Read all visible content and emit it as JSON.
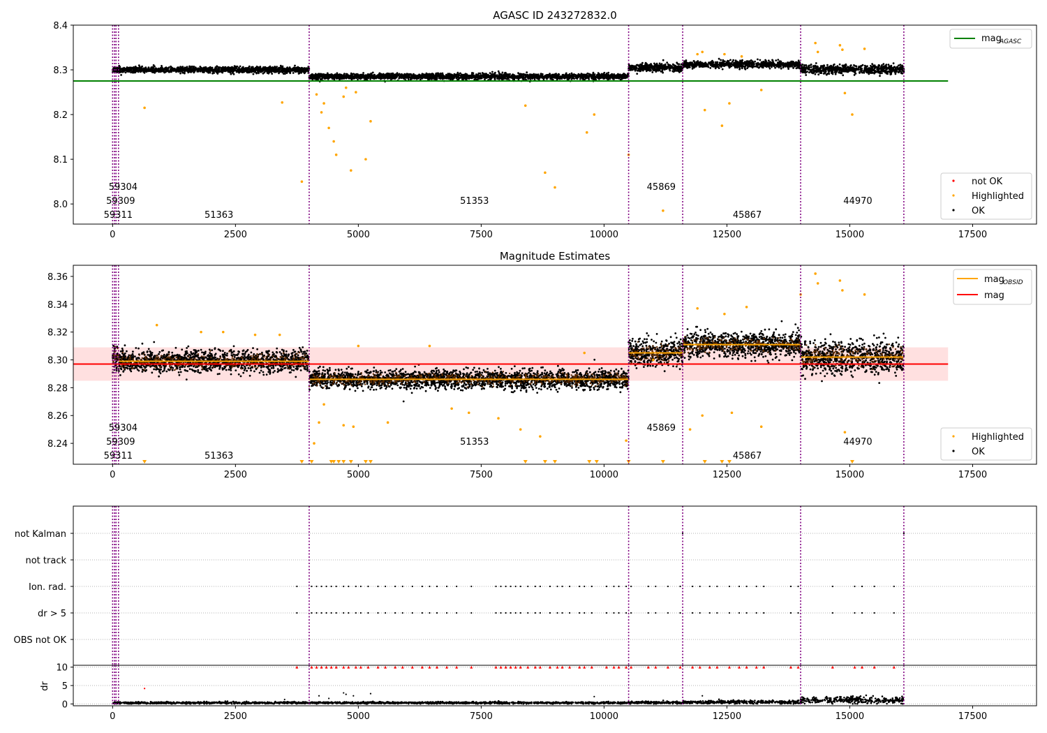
{
  "chart_data": [
    {
      "type": "scatter",
      "title": "AGASC ID 243272832.0",
      "xlim": [
        -800,
        18800
      ],
      "ylim": [
        7.955,
        8.4
      ],
      "xticks": [
        0,
        2500,
        5000,
        7500,
        10000,
        12500,
        15000,
        17500
      ],
      "yticks": [
        8.0,
        8.1,
        8.2,
        8.3,
        8.4
      ],
      "ytick_labels": [
        "8.0",
        "8.1",
        "8.2",
        "8.3",
        "8.4"
      ],
      "grid": false,
      "legends": [
        {
          "placement": "top-right",
          "entries": [
            {
              "label": "mag",
              "sub": "AGASC",
              "color": "#008000",
              "marker": "line"
            }
          ]
        },
        {
          "placement": "bottom-right",
          "entries": [
            {
              "label": "not OK",
              "color": "#ff0000",
              "marker": "dot"
            },
            {
              "label": "Highlighted",
              "color": "#ffa500",
              "marker": "dot"
            },
            {
              "label": "OK",
              "color": "#000000",
              "marker": "dot"
            }
          ]
        }
      ],
      "hlines": [
        {
          "y": 8.275,
          "x": [
            -800,
            17000
          ],
          "color": "#008000",
          "series": "mag_AGASC"
        }
      ],
      "obsid_boundaries": [
        0,
        40,
        70,
        120,
        4000,
        10500,
        11600,
        14000,
        16100
      ],
      "obsid_labels": [
        {
          "text": "59304",
          "x": 100,
          "row": 1
        },
        {
          "text": "59309",
          "x": 50,
          "row": 2
        },
        {
          "text": "59311",
          "x": 0,
          "row": 3
        },
        {
          "text": "51363",
          "x": 2050,
          "row": 3
        },
        {
          "text": "51353",
          "x": 7250,
          "row": 2
        },
        {
          "text": "45869",
          "x": 11050,
          "row": 1
        },
        {
          "text": "45867",
          "x": 12800,
          "row": 3
        },
        {
          "text": "44970",
          "x": 15050,
          "row": 2
        }
      ],
      "segments": [
        {
          "x": [
            0,
            130
          ],
          "mean": 8.301,
          "spread": 0.007
        },
        {
          "x": [
            130,
            4000
          ],
          "mean": 8.3,
          "spread": 0.006
        },
        {
          "x": [
            4000,
            10500
          ],
          "mean": 8.285,
          "spread": 0.006
        },
        {
          "x": [
            10500,
            11600
          ],
          "mean": 8.305,
          "spread": 0.008
        },
        {
          "x": [
            11600,
            14000
          ],
          "mean": 8.312,
          "spread": 0.007
        },
        {
          "x": [
            14000,
            16100
          ],
          "mean": 8.301,
          "spread": 0.009
        }
      ],
      "highlighted_outliers": [
        [
          650,
          8.215
        ],
        [
          3450,
          8.227
        ],
        [
          3850,
          8.05
        ],
        [
          4150,
          8.245
        ],
        [
          4250,
          8.205
        ],
        [
          4300,
          8.225
        ],
        [
          4400,
          8.17
        ],
        [
          4500,
          8.14
        ],
        [
          4550,
          8.11
        ],
        [
          4700,
          8.24
        ],
        [
          4750,
          8.26
        ],
        [
          4850,
          8.075
        ],
        [
          4950,
          8.25
        ],
        [
          5150,
          8.1
        ],
        [
          5250,
          8.185
        ],
        [
          8400,
          8.22
        ],
        [
          8800,
          8.07
        ],
        [
          9000,
          8.037
        ],
        [
          9650,
          8.16
        ],
        [
          9800,
          8.2
        ],
        [
          10500,
          8.11
        ],
        [
          11200,
          7.985
        ],
        [
          12050,
          8.21
        ],
        [
          12400,
          8.175
        ],
        [
          12550,
          8.225
        ],
        [
          13200,
          8.255
        ],
        [
          14900,
          8.248
        ],
        [
          15050,
          8.2
        ],
        [
          14300,
          8.36
        ],
        [
          14350,
          8.34
        ],
        [
          14800,
          8.355
        ],
        [
          14850,
          8.345
        ],
        [
          15300,
          8.347
        ],
        [
          11900,
          8.335
        ],
        [
          12000,
          8.34
        ],
        [
          12450,
          8.335
        ],
        [
          12800,
          8.33
        ]
      ]
    },
    {
      "type": "scatter",
      "title": "Magnitude Estimates",
      "xlim": [
        -800,
        18800
      ],
      "ylim": [
        8.225,
        8.368
      ],
      "xticks": [
        0,
        2500,
        5000,
        7500,
        10000,
        12500,
        15000,
        17500
      ],
      "yticks": [
        8.24,
        8.26,
        8.28,
        8.3,
        8.32,
        8.34,
        8.36
      ],
      "ytick_labels": [
        "8.24",
        "8.26",
        "8.28",
        "8.30",
        "8.32",
        "8.34",
        "8.36"
      ],
      "grid": false,
      "legends": [
        {
          "placement": "top-right",
          "entries": [
            {
              "label": "mag",
              "sub": "OBSID",
              "color": "#ffa500",
              "marker": "line"
            },
            {
              "label": "mag",
              "sub": "",
              "color": "#ff0000",
              "marker": "line"
            }
          ]
        },
        {
          "placement": "bottom-right",
          "entries": [
            {
              "label": "Highlighted",
              "color": "#ffa500",
              "marker": "dot"
            },
            {
              "label": "OK",
              "color": "#000000",
              "marker": "dot"
            }
          ]
        }
      ],
      "mag": {
        "y": 8.297,
        "band": [
          8.285,
          8.309
        ],
        "x": [
          -800,
          17000
        ],
        "color": "#ff0000"
      },
      "mag_obsid": [
        {
          "x": [
            130,
            4000
          ],
          "y": 8.299
        },
        {
          "x": [
            4000,
            10500
          ],
          "y": 8.286
        },
        {
          "x": [
            10500,
            11600
          ],
          "y": 8.305
        },
        {
          "x": [
            11600,
            14000
          ],
          "y": 8.311
        },
        {
          "x": [
            14000,
            16100
          ],
          "y": 8.302
        }
      ],
      "obsid_boundaries": [
        0,
        40,
        70,
        120,
        4000,
        10500,
        11600,
        14000,
        16100
      ],
      "obsid_labels": [
        {
          "text": "59304",
          "x": 100,
          "row": 1
        },
        {
          "text": "59309",
          "x": 50,
          "row": 2
        },
        {
          "text": "59311",
          "x": 0,
          "row": 3
        },
        {
          "text": "51363",
          "x": 2050,
          "row": 3
        },
        {
          "text": "51353",
          "x": 7250,
          "row": 2
        },
        {
          "text": "45869",
          "x": 11050,
          "row": 1
        },
        {
          "text": "45867",
          "x": 12800,
          "row": 3
        },
        {
          "text": "44970",
          "x": 15050,
          "row": 2
        }
      ],
      "segments": [
        {
          "x": [
            0,
            130
          ],
          "mean": 8.302,
          "spread": 0.01
        },
        {
          "x": [
            130,
            4000
          ],
          "mean": 8.299,
          "spread": 0.007
        },
        {
          "x": [
            4000,
            10500
          ],
          "mean": 8.286,
          "spread": 0.006
        },
        {
          "x": [
            10500,
            11600
          ],
          "mean": 8.305,
          "spread": 0.009
        },
        {
          "x": [
            11600,
            14000
          ],
          "mean": 8.311,
          "spread": 0.008
        },
        {
          "x": [
            14000,
            16100
          ],
          "mean": 8.302,
          "spread": 0.011
        }
      ],
      "highlighted_outliers": [
        [
          4100,
          8.24
        ],
        [
          4200,
          8.255
        ],
        [
          4300,
          8.268
        ],
        [
          4700,
          8.253
        ],
        [
          4900,
          8.252
        ],
        [
          5000,
          8.31
        ],
        [
          5600,
          8.255
        ],
        [
          6450,
          8.31
        ],
        [
          6900,
          8.265
        ],
        [
          7250,
          8.262
        ],
        [
          7850,
          8.258
        ],
        [
          8300,
          8.25
        ],
        [
          8700,
          8.245
        ],
        [
          9600,
          8.305
        ],
        [
          10450,
          8.242
        ],
        [
          11000,
          8.3
        ],
        [
          11750,
          8.25
        ],
        [
          12000,
          8.26
        ],
        [
          12600,
          8.262
        ],
        [
          13200,
          8.252
        ],
        [
          14900,
          8.248
        ],
        [
          14000,
          8.347
        ],
        [
          14300,
          8.362
        ],
        [
          14350,
          8.355
        ],
        [
          14800,
          8.357
        ],
        [
          14850,
          8.35
        ],
        [
          15300,
          8.347
        ],
        [
          11900,
          8.337
        ],
        [
          12450,
          8.333
        ],
        [
          12900,
          8.338
        ],
        [
          900,
          8.325
        ],
        [
          1800,
          8.32
        ],
        [
          2250,
          8.32
        ],
        [
          2900,
          8.318
        ],
        [
          3400,
          8.318
        ]
      ],
      "below_axis_markers": [
        650,
        3850,
        4050,
        4450,
        4500,
        4600,
        4700,
        4850,
        5150,
        5250,
        8400,
        8800,
        9000,
        9700,
        9850,
        10500,
        11200,
        12050,
        12400,
        12550,
        15050
      ]
    },
    {
      "type": "scatter",
      "xlim": [
        -800,
        18800
      ],
      "xticks": [
        0,
        2500,
        5000,
        7500,
        10000,
        12500,
        15000,
        17500
      ],
      "flag_categories": [
        "not Kalman",
        "not track",
        "Ion. rad.",
        "dr > 5",
        "OBS not OK"
      ],
      "grid": true,
      "flag_points": {
        "not Kalman": [
          11600,
          16100
        ],
        "Ion. rad.": [
          3750,
          4050,
          4150,
          4250,
          4350,
          4450,
          4550,
          4700,
          4800,
          4950,
          5050,
          5200,
          5400,
          5550,
          5750,
          5900,
          6100,
          6300,
          6450,
          6600,
          6800,
          7000,
          7300,
          7800,
          7900,
          8000,
          8100,
          8200,
          8300,
          8450,
          8600,
          8700,
          8900,
          9050,
          9150,
          9300,
          9500,
          9600,
          9750,
          10050,
          10200,
          10300,
          10450,
          10550,
          10900,
          11050,
          11300,
          11550,
          11800,
          11950,
          12150,
          12300,
          12550,
          12750,
          12900,
          13100,
          13250,
          13800,
          13950,
          14650,
          15100,
          15250,
          15500,
          15900
        ],
        "dr > 5": [
          3750,
          4050,
          4150,
          4250,
          4350,
          4450,
          4550,
          4700,
          4800,
          4950,
          5050,
          5200,
          5400,
          5550,
          5750,
          5900,
          6100,
          6300,
          6450,
          6600,
          6800,
          7000,
          7300,
          7800,
          7900,
          8000,
          8100,
          8200,
          8300,
          8450,
          8600,
          8700,
          8900,
          9050,
          9150,
          9300,
          9500,
          9600,
          9750,
          10050,
          10200,
          10300,
          10450,
          10550,
          10900,
          11050,
          11300,
          11550,
          11800,
          11950,
          12150,
          12300,
          12550,
          12750,
          12900,
          13100,
          13250,
          13800,
          13950,
          14650,
          15100,
          15250,
          15500,
          15900
        ]
      },
      "obsid_boundaries": [
        0,
        40,
        70,
        120,
        4000,
        10500,
        11600,
        14000,
        16100
      ]
    },
    {
      "type": "scatter",
      "ylabel": "dr",
      "xlim": [
        -800,
        18800
      ],
      "ylim": [
        -0.5,
        10.5
      ],
      "xticks": [
        0,
        2500,
        5000,
        7500,
        10000,
        12500,
        15000,
        17500
      ],
      "yticks": [
        0,
        5,
        10
      ],
      "grid": true,
      "dr_capped_markers": [
        3750,
        4050,
        4150,
        4250,
        4350,
        4450,
        4550,
        4700,
        4800,
        4950,
        5050,
        5200,
        5400,
        5550,
        5750,
        5900,
        6100,
        6300,
        6450,
        6600,
        6800,
        7000,
        7300,
        7800,
        7900,
        8000,
        8100,
        8200,
        8300,
        8450,
        8600,
        8700,
        8900,
        9050,
        9150,
        9300,
        9500,
        9600,
        9750,
        10050,
        10200,
        10300,
        10450,
        10550,
        10900,
        11050,
        11300,
        11550,
        11800,
        11950,
        12150,
        12300,
        12550,
        12750,
        12900,
        13100,
        13250,
        13800,
        13950,
        14650,
        15100,
        15250,
        15500,
        15900
      ],
      "dr_outliers": [
        [
          650,
          4.2
        ],
        [
          4200,
          2.2
        ],
        [
          4400,
          1.5
        ],
        [
          4700,
          3.0
        ],
        [
          4750,
          2.6
        ],
        [
          4900,
          2.2
        ],
        [
          5250,
          2.8
        ],
        [
          3500,
          1.2
        ],
        [
          9800,
          2.0
        ],
        [
          12000,
          2.2
        ],
        [
          13200,
          1.0
        ]
      ],
      "dr_segments": [
        {
          "x": [
            0,
            4000
          ],
          "level": 0.3
        },
        {
          "x": [
            4000,
            10500
          ],
          "level": 0.3
        },
        {
          "x": [
            10500,
            11600
          ],
          "level": 0.35
        },
        {
          "x": [
            11600,
            14000
          ],
          "level": 0.5
        },
        {
          "x": [
            14000,
            16100
          ],
          "level": 1.0
        }
      ],
      "obsid_boundaries": [
        0,
        40,
        70,
        120,
        4000,
        10500,
        11600,
        14000,
        16100
      ]
    }
  ]
}
